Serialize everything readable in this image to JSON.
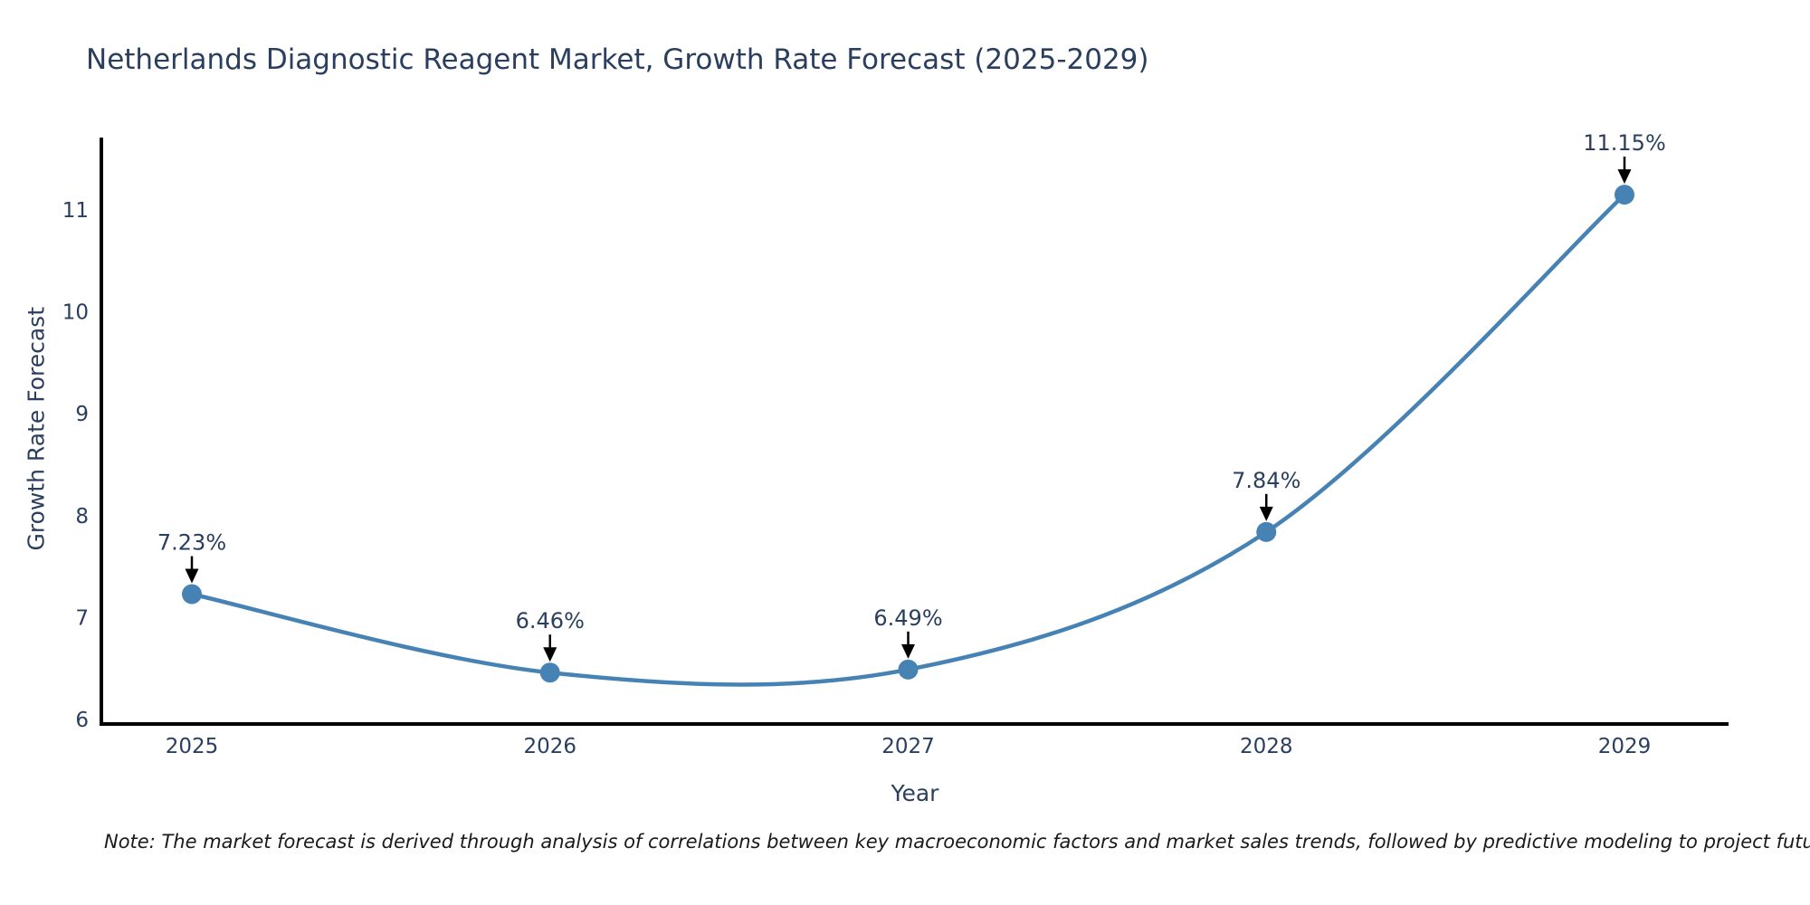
{
  "chart": {
    "title": "Netherlands Diagnostic Reagent Market, Growth Rate Forecast (2025-2029)",
    "xlabel": "Year",
    "ylabel": "Growth Rate Forecast",
    "note": "Note: The market forecast is derived through analysis of correlations between key macroeconomic factors and market sales trends, followed by predictive modeling to project future sales"
  },
  "chart_data": {
    "type": "line",
    "title": "Netherlands Diagnostic Reagent Market, Growth Rate Forecast (2025-2029)",
    "xlabel": "Year",
    "ylabel": "Growth Rate Forecast",
    "categories": [
      "2025",
      "2026",
      "2027",
      "2028",
      "2029"
    ],
    "x": [
      2025,
      2026,
      2027,
      2028,
      2029
    ],
    "values": [
      7.23,
      6.46,
      6.49,
      7.84,
      11.15
    ],
    "point_labels": [
      "7.23%",
      "6.46%",
      "6.49%",
      "7.84%",
      "11.15%"
    ],
    "yticks": [
      "6",
      "7",
      "8",
      "9",
      "10",
      "11"
    ],
    "ytick_values": [
      6,
      7,
      8,
      9,
      10,
      11
    ],
    "ylim": [
      6,
      11.75
    ],
    "grid": false,
    "legend": false,
    "line_color": "#4682b4",
    "marker_color": "#4682b4",
    "axis_color": "#000000",
    "tick_color": "#2a3f5f",
    "label_color": "#2a3f5f",
    "annotation_arrow_color": "#000000"
  }
}
